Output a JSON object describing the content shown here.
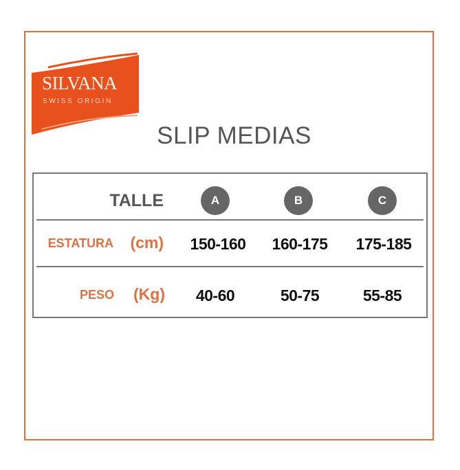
{
  "logo": {
    "brand": "SILVANA",
    "tagline": "SWISS ORIGIN",
    "color": "#e8501e"
  },
  "title": "SLIP MEDIAS",
  "table": {
    "header_label": "TALLE",
    "sizes": [
      "A",
      "B",
      "C"
    ],
    "rows": [
      {
        "label": "ESTATURA",
        "unit": "(cm)",
        "values": [
          "150-160",
          "160-175",
          "175-185"
        ]
      },
      {
        "label": "PESO",
        "unit": "(Kg)",
        "values": [
          "40-60",
          "50-75",
          "55-85"
        ]
      }
    ]
  },
  "colors": {
    "accent": "#e0703f",
    "badge": "#666666",
    "border": "#777777"
  }
}
